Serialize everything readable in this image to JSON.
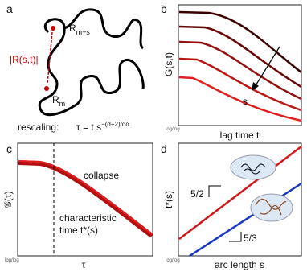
{
  "panel_a": {
    "label": "a",
    "top_label": {
      "base": "R",
      "sub": "m+s"
    },
    "distance_label": "|R(s,t)|",
    "bottom_label": {
      "base": "R",
      "sub": "m"
    },
    "rescaling": {
      "prefix": "rescaling:",
      "equation": "τ = t s",
      "exponent": "−(d+2)/dα"
    }
  },
  "panel_b": {
    "label": "b",
    "y_label": "G(s,t)",
    "x_label": "lag time t",
    "arrow_label": "s",
    "scale_note": "log/log"
  },
  "panel_c": {
    "label": "c",
    "y_label": "𝒢(τ)",
    "x_label": "τ",
    "annotation": "collapse",
    "characteristic": [
      "characteristic",
      "time t*(s)"
    ],
    "scale_note": "log/log"
  },
  "panel_d": {
    "label": "d",
    "y_label": "t*(s)",
    "x_label": "arc length s",
    "slope_upper": "5/2",
    "slope_lower": "5/3",
    "scale_note": "log/log"
  }
}
